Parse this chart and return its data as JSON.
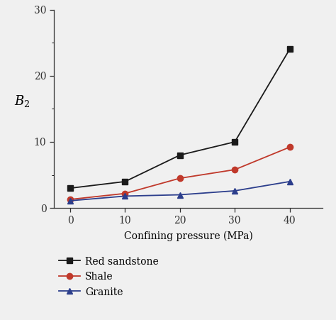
{
  "x": [
    0,
    10,
    20,
    30,
    40
  ],
  "red_sandstone": [
    3.0,
    4.0,
    8.0,
    10.0,
    24.0
  ],
  "shale": [
    1.3,
    2.2,
    4.5,
    5.8,
    9.2
  ],
  "granite": [
    1.1,
    1.8,
    2.0,
    2.6,
    4.0
  ],
  "red_sandstone_color": "#1a1a1a",
  "shale_color": "#c0392b",
  "granite_color": "#2c3e8c",
  "xlabel": "Confining pressure (MPa)",
  "ylabel": "$B_2$",
  "ylim": [
    0,
    30
  ],
  "xlim": [
    -3,
    46
  ],
  "yticks": [
    0,
    10,
    20,
    30
  ],
  "xticks": [
    0,
    10,
    20,
    30,
    40
  ],
  "legend_labels": [
    "Red sandstone",
    "Shale",
    "Granite"
  ],
  "linewidth": 1.3,
  "markersize": 6,
  "bg_color": "#f0f0f0"
}
